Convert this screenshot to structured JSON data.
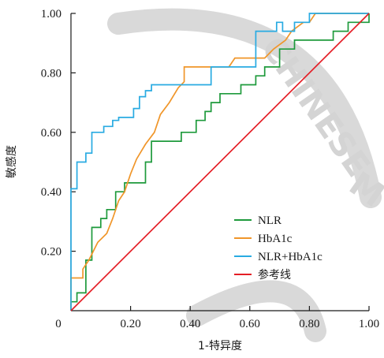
{
  "watermark": {
    "text_1": "CHINESE",
    "text_2": "M"
  },
  "chart_data": {
    "type": "line",
    "title": "",
    "xlabel": "1-特异度",
    "ylabel": "敏感度",
    "xlim": [
      0,
      1
    ],
    "ylim": [
      0,
      1
    ],
    "x_ticks": [
      "0",
      "0.20",
      "0.40",
      "0.60",
      "0.80",
      "1.00"
    ],
    "y_ticks": [
      "0.20",
      "0.40",
      "0.60",
      "0.80",
      "1.00"
    ],
    "legend_position": "bottom-right",
    "grid": false,
    "series": [
      {
        "name": "NLR",
        "color": "#1e9a3c",
        "points": [
          [
            0,
            0
          ],
          [
            0,
            0.03
          ],
          [
            0.02,
            0.03
          ],
          [
            0.02,
            0.06
          ],
          [
            0.05,
            0.06
          ],
          [
            0.05,
            0.17
          ],
          [
            0.07,
            0.17
          ],
          [
            0.07,
            0.28
          ],
          [
            0.1,
            0.28
          ],
          [
            0.1,
            0.31
          ],
          [
            0.12,
            0.31
          ],
          [
            0.12,
            0.34
          ],
          [
            0.15,
            0.34
          ],
          [
            0.15,
            0.4
          ],
          [
            0.18,
            0.4
          ],
          [
            0.18,
            0.43
          ],
          [
            0.25,
            0.43
          ],
          [
            0.25,
            0.5
          ],
          [
            0.27,
            0.5
          ],
          [
            0.27,
            0.57
          ],
          [
            0.37,
            0.57
          ],
          [
            0.37,
            0.6
          ],
          [
            0.42,
            0.6
          ],
          [
            0.42,
            0.64
          ],
          [
            0.45,
            0.64
          ],
          [
            0.45,
            0.67
          ],
          [
            0.47,
            0.67
          ],
          [
            0.47,
            0.7
          ],
          [
            0.5,
            0.7
          ],
          [
            0.5,
            0.73
          ],
          [
            0.57,
            0.73
          ],
          [
            0.57,
            0.76
          ],
          [
            0.62,
            0.76
          ],
          [
            0.62,
            0.79
          ],
          [
            0.65,
            0.79
          ],
          [
            0.65,
            0.82
          ],
          [
            0.7,
            0.82
          ],
          [
            0.7,
            0.88
          ],
          [
            0.75,
            0.88
          ],
          [
            0.75,
            0.91
          ],
          [
            0.88,
            0.91
          ],
          [
            0.88,
            0.94
          ],
          [
            0.93,
            0.94
          ],
          [
            0.93,
            0.97
          ],
          [
            1,
            0.97
          ],
          [
            1,
            1
          ]
        ]
      },
      {
        "name": "HbA1c",
        "color": "#f0962a",
        "points": [
          [
            0,
            0
          ],
          [
            0,
            0.11
          ],
          [
            0.04,
            0.11
          ],
          [
            0.04,
            0.14
          ],
          [
            0.06,
            0.17
          ],
          [
            0.09,
            0.23
          ],
          [
            0.12,
            0.26
          ],
          [
            0.14,
            0.31
          ],
          [
            0.16,
            0.37
          ],
          [
            0.18,
            0.4
          ],
          [
            0.2,
            0.46
          ],
          [
            0.22,
            0.51
          ],
          [
            0.25,
            0.56
          ],
          [
            0.28,
            0.6
          ],
          [
            0.3,
            0.66
          ],
          [
            0.33,
            0.7
          ],
          [
            0.36,
            0.75
          ],
          [
            0.38,
            0.77
          ],
          [
            0.38,
            0.82
          ],
          [
            0.46,
            0.82
          ],
          [
            0.53,
            0.82
          ],
          [
            0.55,
            0.85
          ],
          [
            0.65,
            0.85
          ],
          [
            0.68,
            0.88
          ],
          [
            0.72,
            0.91
          ],
          [
            0.74,
            0.94
          ],
          [
            0.78,
            0.97
          ],
          [
            0.8,
            0.97
          ],
          [
            0.82,
            1
          ],
          [
            1,
            1
          ]
        ]
      },
      {
        "name": "NLR+HbA1c",
        "color": "#29abe2",
        "points": [
          [
            0,
            0
          ],
          [
            0,
            0.41
          ],
          [
            0.02,
            0.41
          ],
          [
            0.02,
            0.5
          ],
          [
            0.05,
            0.5
          ],
          [
            0.05,
            0.53
          ],
          [
            0.07,
            0.53
          ],
          [
            0.07,
            0.6
          ],
          [
            0.11,
            0.6
          ],
          [
            0.11,
            0.62
          ],
          [
            0.14,
            0.62
          ],
          [
            0.14,
            0.64
          ],
          [
            0.16,
            0.64
          ],
          [
            0.16,
            0.65
          ],
          [
            0.21,
            0.65
          ],
          [
            0.21,
            0.68
          ],
          [
            0.23,
            0.68
          ],
          [
            0.23,
            0.72
          ],
          [
            0.25,
            0.72
          ],
          [
            0.25,
            0.74
          ],
          [
            0.27,
            0.74
          ],
          [
            0.27,
            0.76
          ],
          [
            0.47,
            0.76
          ],
          [
            0.47,
            0.82
          ],
          [
            0.62,
            0.82
          ],
          [
            0.62,
            0.94
          ],
          [
            0.69,
            0.94
          ],
          [
            0.69,
            0.97
          ],
          [
            0.71,
            0.97
          ],
          [
            0.71,
            0.94
          ],
          [
            0.75,
            0.94
          ],
          [
            0.75,
            0.97
          ],
          [
            0.8,
            0.97
          ],
          [
            0.8,
            1
          ],
          [
            1,
            1
          ]
        ]
      },
      {
        "name": "参考线",
        "color": "#e41e26",
        "points": [
          [
            0,
            0
          ],
          [
            1,
            1
          ]
        ]
      }
    ]
  }
}
